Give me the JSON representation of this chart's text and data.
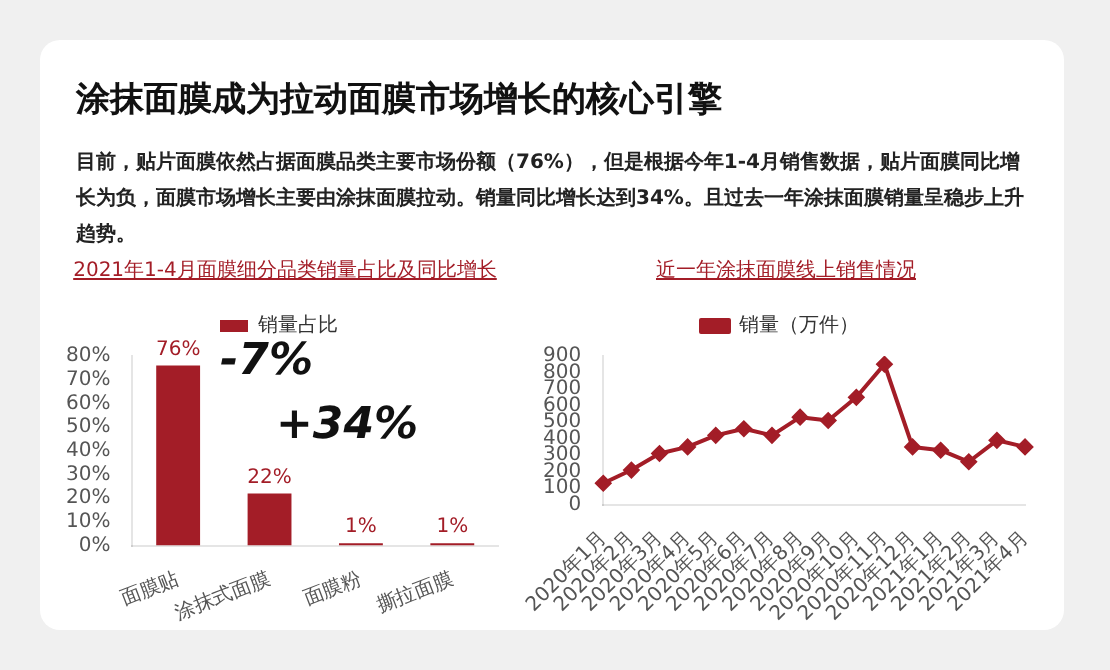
{
  "chart_data": [
    {
      "type": "other",
      "title": "涂抹面膜成为拉动面膜市场增长的核心引擎",
      "annotations": [
        "目前，贴片面膜依然占据面膜品类主要市场份额（76%），但是根据今年1-4月销售数据，贴片面膜同比增长为负，面膜市场增长主要由涂抹面膜拉动。销量同比增长达到34%。且过去一年涂抹面膜销量呈稳步上升趋势。"
      ]
    },
    {
      "type": "bar",
      "title": "2021年1-4月面膜细分品类销量占比及同比增长",
      "categories": [
        "面膜贴",
        "涂抹式面膜",
        "面膜粉",
        "撕拉面膜"
      ],
      "series": [
        {
          "name": "销量占比",
          "color": "#a31d27",
          "values": [
            76,
            22,
            1,
            1
          ],
          "value_labels": [
            "76%",
            "22%",
            "1%",
            "1%"
          ]
        }
      ],
      "ylim": [
        0,
        80
      ],
      "yticks": [
        {
          "value": 0,
          "label": "0%"
        },
        {
          "value": 10,
          "label": "10%"
        },
        {
          "value": 20,
          "label": "20%"
        },
        {
          "value": 30,
          "label": "30%"
        },
        {
          "value": 40,
          "label": "40%"
        },
        {
          "value": 50,
          "label": "50%"
        },
        {
          "value": 60,
          "label": "60%"
        },
        {
          "value": 70,
          "label": "70%"
        },
        {
          "value": 80,
          "label": "80%"
        }
      ],
      "legend": "top",
      "annotations": [
        "-7%",
        "+34%"
      ]
    },
    {
      "type": "line",
      "title": "近一年涂抹面膜线上销售情况",
      "categories": [
        "2020年1月",
        "2020年2月",
        "2020年3月",
        "2020年4月",
        "2020年5月",
        "2020年6月",
        "2020年7月",
        "2020年8月",
        "2020年9月",
        "2020年10月",
        "2020年11月",
        "2020年12月",
        "2021年1月",
        "2021年2月",
        "2021年3月",
        "2021年4月"
      ],
      "series": [
        {
          "name": "销量（万件）",
          "color": "#a31d27",
          "values": [
            130,
            210,
            310,
            350,
            420,
            460,
            420,
            530,
            510,
            650,
            850,
            350,
            330,
            260,
            390,
            350
          ]
        }
      ],
      "ylim": [
        0,
        900
      ],
      "yticks": [
        0,
        100,
        200,
        300,
        400,
        500,
        600,
        700,
        800,
        900
      ],
      "legend": "top",
      "marker": "diamond"
    }
  ]
}
